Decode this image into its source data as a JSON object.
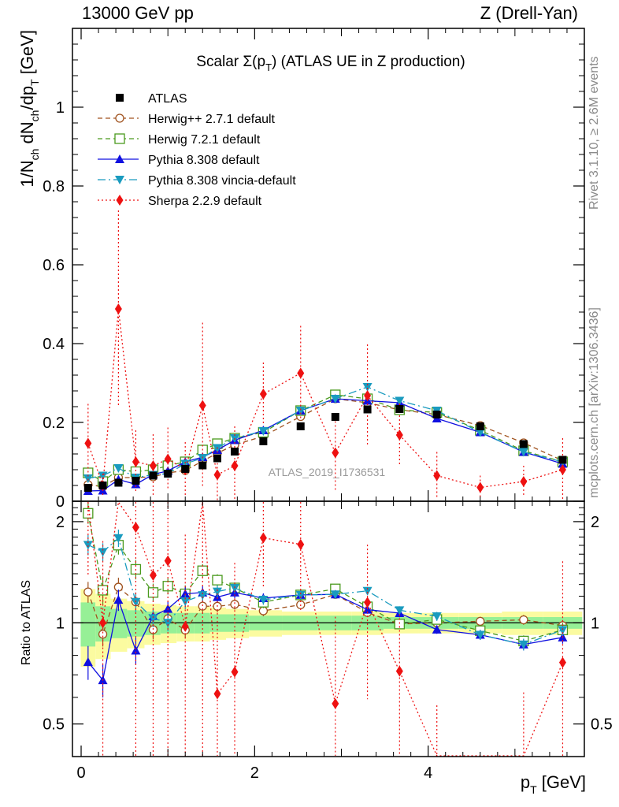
{
  "header": {
    "left": "13000 GeV pp",
    "right": "Z (Drell-Yan)"
  },
  "side_labels": {
    "rivet": "Rivet 3.1.10, ≥ 2.6M events",
    "mcplots": "mcplots.cern.ch [arXiv:1306.3436]"
  },
  "chart_data": {
    "type": "line",
    "title": "Scalar Σ(p_T) (ATLAS UE in Z production)",
    "title_parts": {
      "main": "Scalar Σ(p",
      "sub": "T",
      "tail": ") (ATLAS UE in Z production)"
    },
    "analysis_id": "ATLAS_2019_I1736531",
    "xlabel": "p_T [GeV]",
    "xlabel_parts": {
      "main": "p",
      "sub": "T",
      "tail": " [GeV]"
    },
    "ylabel": "1/N_ch dN_ch/dp_T [GeV]",
    "ylabel_parts": [
      "1/N",
      "ch",
      " dN",
      "ch",
      "/dp",
      "T",
      " [GeV]"
    ],
    "ratio_ylabel": "Ratio to ATLAS",
    "xlim": [
      -0.1,
      5.8
    ],
    "ylim": [
      0,
      1.2
    ],
    "ratio_ylim": [
      0.4,
      2.3
    ],
    "x_ticks": [
      0,
      2,
      4
    ],
    "x_tick_labels": [
      "0",
      "2",
      "4"
    ],
    "y_ticks": [
      0,
      0.2,
      0.4,
      0.6,
      0.8,
      1
    ],
    "y_tick_labels": [
      "0",
      "0.2",
      "0.4",
      "0.6",
      "0.8",
      "1"
    ],
    "ratio_ticks": [
      0.5,
      1,
      2
    ],
    "ratio_tick_labels": [
      "0.5",
      "1",
      "2"
    ],
    "x": [
      0.08,
      0.25,
      0.43,
      0.63,
      0.83,
      1.0,
      1.2,
      1.4,
      1.57,
      1.77,
      2.1,
      2.53,
      2.93,
      3.3,
      3.67,
      4.1,
      4.6,
      5.1,
      5.55
    ],
    "data": {
      "name": "ATLAS",
      "color": "#000000",
      "values": [
        0.034,
        0.04,
        0.047,
        0.052,
        0.065,
        0.07,
        0.082,
        0.091,
        0.109,
        0.126,
        0.152,
        0.19,
        0.214,
        0.233,
        0.234,
        0.22,
        0.19,
        0.145,
        0.105
      ]
    },
    "band_inner": [
      0.15,
      0.12,
      0.1,
      0.09,
      0.08,
      0.07,
      0.07,
      0.07,
      0.06,
      0.06,
      0.05,
      0.05,
      0.05,
      0.05,
      0.04,
      0.04,
      0.04,
      0.04,
      0.04
    ],
    "band_outer": [
      0.26,
      0.22,
      0.18,
      0.16,
      0.14,
      0.13,
      0.12,
      0.12,
      0.11,
      0.1,
      0.09,
      0.08,
      0.08,
      0.08,
      0.07,
      0.07,
      0.07,
      0.08,
      0.08
    ],
    "series": [
      {
        "name": "Herwig++ 2.7.1 default",
        "color": "#a0521e",
        "marker": "circle-open",
        "dash": "6 4",
        "values": [
          0.042,
          0.037,
          0.06,
          0.06,
          0.062,
          0.072,
          0.078,
          0.102,
          0.122,
          0.143,
          0.165,
          0.215,
          0.26,
          0.25,
          0.232,
          0.22,
          0.192,
          0.148,
          0.103
        ],
        "errors": [
          0.003,
          0.003,
          0.004,
          0.004,
          0.004,
          0.004,
          0.004,
          0.005,
          0.005,
          0.005,
          0.006,
          0.006,
          0.007,
          0.007,
          0.007,
          0.006,
          0.006,
          0.005,
          0.004
        ]
      },
      {
        "name": "Herwig 7.2.1 default",
        "color": "#4a9a1e",
        "marker": "square-open",
        "dash": "6 4",
        "values": [
          0.072,
          0.05,
          0.08,
          0.075,
          0.08,
          0.09,
          0.1,
          0.13,
          0.146,
          0.16,
          0.175,
          0.23,
          0.27,
          0.26,
          0.232,
          0.225,
          0.18,
          0.128,
          0.1
        ],
        "errors": [
          0.005,
          0.005,
          0.005,
          0.005,
          0.005,
          0.005,
          0.006,
          0.006,
          0.006,
          0.006,
          0.007,
          0.007,
          0.008,
          0.008,
          0.008,
          0.007,
          0.006,
          0.005,
          0.005
        ]
      },
      {
        "name": "Pythia 8.308 default",
        "color": "#1010e0",
        "marker": "triangle-up",
        "dash": "",
        "values": [
          0.026,
          0.027,
          0.055,
          0.043,
          0.068,
          0.077,
          0.1,
          0.112,
          0.13,
          0.155,
          0.18,
          0.23,
          0.26,
          0.255,
          0.25,
          0.21,
          0.175,
          0.125,
          0.095
        ],
        "errors": [
          0.003,
          0.003,
          0.004,
          0.004,
          0.004,
          0.004,
          0.005,
          0.005,
          0.005,
          0.006,
          0.006,
          0.007,
          0.007,
          0.007,
          0.007,
          0.006,
          0.006,
          0.005,
          0.004
        ]
      },
      {
        "name": "Pythia 8.308 vincia-default",
        "color": "#1a9bbf",
        "marker": "triangle-down",
        "dash": "10 4 2 4",
        "values": [
          0.058,
          0.065,
          0.084,
          0.06,
          0.067,
          0.07,
          0.095,
          0.11,
          0.135,
          0.16,
          0.178,
          0.23,
          0.26,
          0.29,
          0.255,
          0.23,
          0.175,
          0.125,
          0.1
        ],
        "errors": [
          0.004,
          0.004,
          0.005,
          0.004,
          0.004,
          0.004,
          0.005,
          0.005,
          0.006,
          0.006,
          0.006,
          0.007,
          0.007,
          0.008,
          0.007,
          0.007,
          0.006,
          0.005,
          0.004
        ]
      },
      {
        "name": "Sherpa 2.2.9 default",
        "color": "#ee1111",
        "marker": "diamond",
        "dash": "2 3",
        "values": [
          0.147,
          0.04,
          0.488,
          0.1,
          0.09,
          0.107,
          0.08,
          0.243,
          0.067,
          0.09,
          0.272,
          0.325,
          0.123,
          0.268,
          0.168,
          0.065,
          0.035,
          0.05,
          0.08
        ],
        "errors": [
          0.1,
          0.03,
          0.25,
          0.08,
          0.08,
          0.08,
          0.07,
          0.21,
          0.07,
          0.1,
          0.08,
          0.12,
          0.1,
          0.13,
          0.08,
          0.06,
          0.03,
          0.04,
          0.08
        ]
      }
    ]
  }
}
